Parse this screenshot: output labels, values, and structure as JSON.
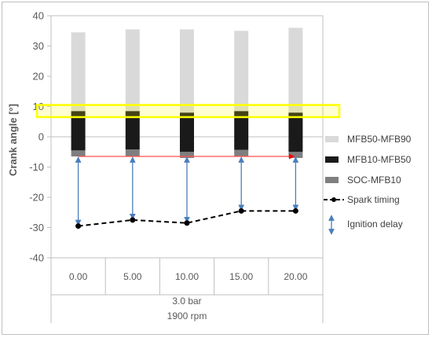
{
  "chart_data": {
    "type": "bar",
    "stacked": true,
    "ylabel": "Crank angle [°]",
    "ylim": [
      -40,
      40
    ],
    "yticks": [
      40,
      30,
      20,
      10,
      0,
      -10,
      -20,
      -30,
      -40
    ],
    "categories": [
      "0.00",
      "5.00",
      "10.00",
      "15.00",
      "20.00"
    ],
    "group_labels": [
      "3.0 bar",
      "1900 rpm"
    ],
    "series": [
      {
        "name": "SOC-MFB10",
        "color": "#7f7f7f",
        "from": [
          -6.5,
          -6.5,
          -7.0,
          -6.5,
          -7.0
        ],
        "to": [
          -4.5,
          -4.2,
          -5.0,
          -4.3,
          -5.0
        ]
      },
      {
        "name": "MFB10-MFB50",
        "color": "#1a1a1a",
        "from": [
          -4.5,
          -4.2,
          -5.0,
          -4.3,
          -5.0
        ],
        "to": [
          8.5,
          8.5,
          8.0,
          8.5,
          8.0
        ]
      },
      {
        "name": "MFB50-MFB90",
        "color": "#d9d9d9",
        "from": [
          8.5,
          8.5,
          8.0,
          8.5,
          8.0
        ],
        "to": [
          34.5,
          35.5,
          35.5,
          35.0,
          36.0
        ]
      }
    ],
    "spark_timing": {
      "name": "Spark timing",
      "values": [
        -29.5,
        -27.5,
        -28.5,
        -24.5,
        -24.5
      ]
    },
    "ignition_delay": {
      "name": "Ignition delay",
      "to": [
        -6.5,
        -6.5,
        -6.5,
        -6.5,
        -6.5
      ]
    },
    "highlight_band": [
      6.5,
      10.5
    ],
    "legend_position": "right",
    "legend": {
      "items": [
        {
          "label": "MFB50-MFB90",
          "type": "box",
          "color": "#d9d9d9"
        },
        {
          "label": "MFB10-MFB50",
          "type": "box",
          "color": "#1a1a1a"
        },
        {
          "label": "SOC-MFB10",
          "type": "box",
          "color": "#7f7f7f"
        },
        {
          "label": "Spark timing",
          "type": "dashline"
        },
        {
          "label": "Ignition delay",
          "type": "arrow"
        }
      ]
    },
    "colors": {
      "axis": "#bfbfbf",
      "text": "#595959",
      "highlight": "#ffff00",
      "reference_line": "#ff4d4d",
      "arrow": "#4a7ebb",
      "spark": "#000000"
    }
  }
}
